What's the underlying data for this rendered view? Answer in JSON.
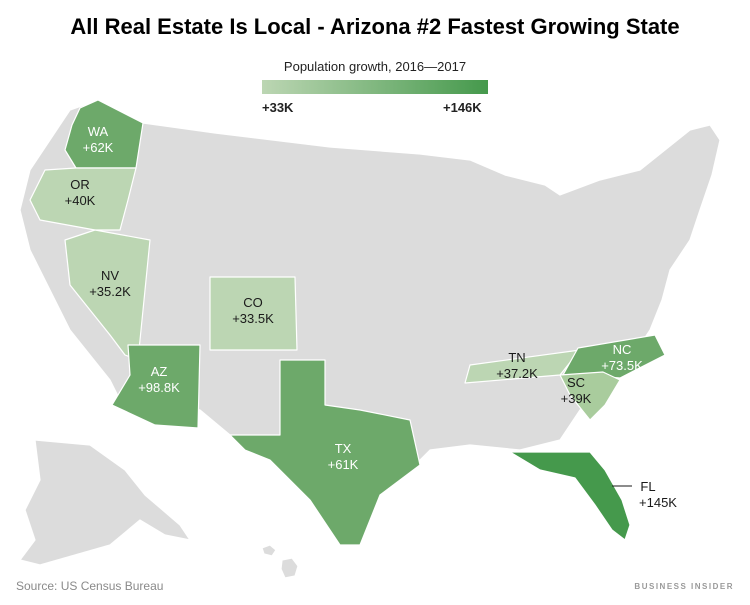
{
  "title": "All Real Estate Is Local - Arizona #2 Fastest Growing State",
  "legend": {
    "title": "Population growth, 2016—2017",
    "min_label": "+33K",
    "max_label": "+146K",
    "min_color": "#bcd6b3",
    "max_color": "#45994c"
  },
  "colors": {
    "base_state": "#dcdcdc",
    "border": "#ffffff"
  },
  "states": [
    {
      "abbr": "WA",
      "growth": "+62K"
    },
    {
      "abbr": "OR",
      "growth": "+40K"
    },
    {
      "abbr": "NV",
      "growth": "+35.2K"
    },
    {
      "abbr": "CO",
      "growth": "+33.5K"
    },
    {
      "abbr": "AZ",
      "growth": "+98.8K"
    },
    {
      "abbr": "TX",
      "growth": "+61K"
    },
    {
      "abbr": "TN",
      "growth": "+37.2K"
    },
    {
      "abbr": "NC",
      "growth": "+73.5K"
    },
    {
      "abbr": "SC",
      "growth": "+39K"
    },
    {
      "abbr": "FL",
      "growth": "+145K"
    }
  ],
  "source": "Source: US Census Bureau",
  "brand": "BUSINESS INSIDER"
}
